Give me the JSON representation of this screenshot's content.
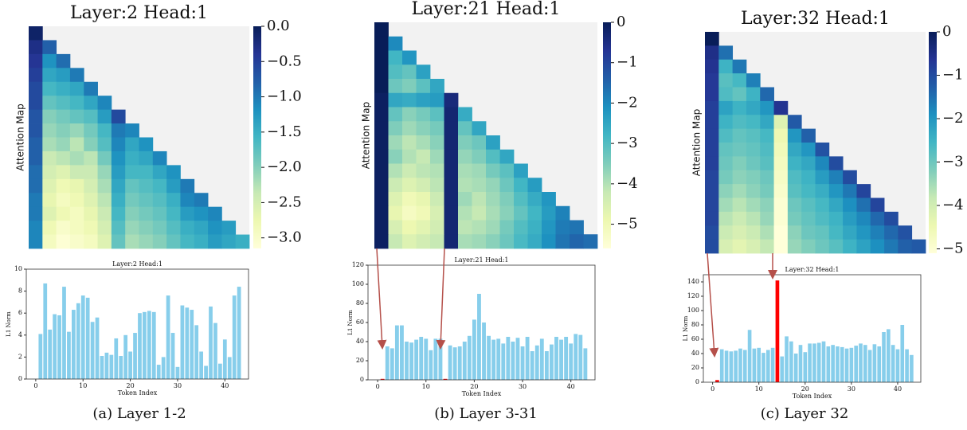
{
  "chart_data": [
    {
      "type": "heatmap",
      "title": "Layer:2 Head:1",
      "ylabel": "Attention Map",
      "colormap": "YlGnBu",
      "zlim": [
        -3.15,
        0
      ],
      "zticks": [
        {
          "value": 0,
          "label": "0.0"
        },
        {
          "value": -0.5,
          "label": "−0.5"
        },
        {
          "value": -1,
          "label": "−1.0"
        },
        {
          "value": -1.5,
          "label": "−1.5"
        },
        {
          "value": -2,
          "label": "−2.0"
        },
        {
          "value": -2.5,
          "label": "−2.5"
        },
        {
          "value": -3,
          "label": "−3.0"
        }
      ],
      "matrix": [
        [
          -0.1
        ],
        [
          -0.3,
          -0.8
        ],
        [
          -0.4,
          -1.2,
          -0.9
        ],
        [
          -0.5,
          -1.4,
          -1.3,
          -1.0
        ],
        [
          -0.6,
          -1.6,
          -1.5,
          -1.4,
          -1.0
        ],
        [
          -0.6,
          -1.8,
          -1.7,
          -1.6,
          -1.4,
          -1.1
        ],
        [
          -0.7,
          -2.0,
          -1.9,
          -1.8,
          -1.7,
          -1.3,
          -0.6
        ],
        [
          -0.7,
          -2.1,
          -2.0,
          -2.1,
          -1.9,
          -1.6,
          -1.0,
          -1.1
        ],
        [
          -0.8,
          -2.2,
          -2.1,
          -2.3,
          -2.0,
          -1.7,
          -1.1,
          -1.4,
          -1.2
        ],
        [
          -0.8,
          -2.4,
          -2.3,
          -2.2,
          -2.3,
          -1.9,
          -1.2,
          -1.5,
          -1.4,
          -1.1
        ],
        [
          -0.9,
          -2.5,
          -2.6,
          -2.4,
          -2.4,
          -2.1,
          -1.3,
          -1.6,
          -1.6,
          -1.4,
          -1.2
        ],
        [
          -0.9,
          -2.6,
          -2.8,
          -2.7,
          -2.5,
          -2.2,
          -1.4,
          -1.8,
          -1.7,
          -1.6,
          -1.3,
          -1.0
        ],
        [
          -1.0,
          -2.7,
          -2.9,
          -2.8,
          -2.6,
          -2.3,
          -1.5,
          -1.9,
          -1.8,
          -1.7,
          -1.5,
          -1.1,
          -1.0
        ],
        [
          -1.0,
          -2.6,
          -2.8,
          -2.9,
          -2.7,
          -2.4,
          -1.6,
          -2.0,
          -1.9,
          -1.8,
          -1.6,
          -1.3,
          -1.2,
          -1.1
        ],
        [
          -1.1,
          -2.8,
          -3.0,
          -2.9,
          -2.8,
          -2.5,
          -1.7,
          -2.1,
          -2.0,
          -1.9,
          -1.7,
          -1.5,
          -1.4,
          -1.2,
          -1.3
        ],
        [
          -1.1,
          -2.9,
          -3.1,
          -3.0,
          -2.9,
          -2.6,
          -1.8,
          -2.2,
          -2.1,
          -2.0,
          -1.8,
          -1.6,
          -1.5,
          -1.3,
          -1.4,
          -1.5
        ]
      ]
    },
    {
      "type": "bar",
      "title": "Layer:2 Head:1",
      "xlabel": "Token Index",
      "ylabel": "L1 Norm",
      "x": [
        1,
        2,
        3,
        4,
        5,
        6,
        7,
        8,
        9,
        10,
        11,
        12,
        13,
        14,
        15,
        16,
        17,
        18,
        19,
        20,
        21,
        22,
        23,
        24,
        25,
        26,
        27,
        28,
        29,
        30,
        31,
        32,
        33,
        34,
        35,
        36,
        37,
        38,
        39,
        40,
        41,
        42,
        43
      ],
      "values": [
        4.1,
        8.7,
        4.5,
        5.9,
        5.8,
        8.4,
        4.3,
        6.3,
        6.9,
        7.6,
        7.4,
        5.2,
        5.6,
        2.1,
        2.4,
        2.2,
        3.7,
        2.1,
        4.0,
        2.5,
        4.2,
        6.0,
        6.1,
        6.2,
        6.1,
        1.3,
        2.0,
        7.6,
        4.2,
        1.1,
        6.7,
        6.5,
        6.3,
        4.9,
        2.5,
        1.2,
        6.6,
        5.1,
        1.4,
        3.6,
        2.0,
        7.6,
        8.4
      ],
      "color": "#87ceeb",
      "xlim": [
        -2,
        45
      ],
      "xticks": [
        0,
        10,
        20,
        30,
        40
      ],
      "ylim": [
        0,
        10
      ],
      "yticks": [
        0,
        2,
        4,
        6,
        8,
        10
      ]
    },
    {
      "type": "heatmap",
      "title": "Layer:21 Head:1",
      "ylabel": "Attention Map",
      "colormap": "YlGnBu",
      "zlim": [
        -5.6,
        0
      ],
      "zticks": [
        0,
        {
          "value": -1,
          "label": "−1"
        },
        {
          "value": -2,
          "label": "−2"
        },
        {
          "value": -3,
          "label": "−3"
        },
        {
          "value": -4,
          "label": "−4"
        },
        {
          "value": -5,
          "label": "−5"
        }
      ],
      "matrix": [
        [
          0
        ],
        [
          0,
          -2.0
        ],
        [
          0,
          -2.8,
          -2.2
        ],
        [
          0,
          -3.0,
          -3.2,
          -2.4
        ],
        [
          0,
          -3.3,
          -3.5,
          -3.1,
          -2.5
        ],
        [
          -0.1,
          -2.5,
          -2.6,
          -2.4,
          -2.3,
          -0.4
        ],
        [
          -0.1,
          -3.2,
          -3.6,
          -3.4,
          -3.1,
          -0.3,
          -2.6
        ],
        [
          -0.1,
          -3.5,
          -3.8,
          -3.6,
          -3.4,
          -0.3,
          -3.2,
          -2.5
        ],
        [
          -0.1,
          -3.8,
          -4.1,
          -3.9,
          -3.6,
          -0.3,
          -3.5,
          -3.3,
          -2.4
        ],
        [
          -0.1,
          -3.6,
          -4.0,
          -4.2,
          -3.8,
          -0.3,
          -3.7,
          -3.5,
          -3.0,
          -2.5
        ],
        [
          -0.1,
          -4.0,
          -4.3,
          -4.1,
          -4.0,
          -0.3,
          -3.9,
          -3.8,
          -3.4,
          -3.1,
          -2.4
        ],
        [
          -0.1,
          -4.3,
          -4.6,
          -4.4,
          -4.1,
          -0.3,
          -4.0,
          -3.9,
          -3.7,
          -3.3,
          -2.8,
          -2.3
        ],
        [
          -0.1,
          -4.6,
          -5.0,
          -4.8,
          -4.3,
          -0.3,
          -3.8,
          -4.1,
          -3.8,
          -3.5,
          -3.0,
          -2.6,
          -2.2
        ],
        [
          -0.1,
          -4.8,
          -5.2,
          -5.0,
          -4.5,
          -0.3,
          -4.0,
          -4.2,
          -3.9,
          -3.6,
          -3.2,
          -2.8,
          -2.3,
          -1.9
        ],
        [
          -0.1,
          -4.5,
          -4.9,
          -4.7,
          -4.4,
          -0.3,
          -4.1,
          -4.0,
          -3.8,
          -3.4,
          -3.0,
          -2.7,
          -2.2,
          -1.8,
          -1.7
        ],
        [
          -0.1,
          -4.2,
          -4.6,
          -4.4,
          -4.2,
          -0.3,
          -3.9,
          -3.8,
          -3.6,
          -3.3,
          -2.9,
          -2.6,
          -2.1,
          -1.7,
          -1.5,
          -1.6
        ]
      ]
    },
    {
      "type": "bar",
      "title": "Layer:21 Head:1",
      "xlabel": "Token Index",
      "ylabel": "L1 Norm",
      "x": [
        1,
        2,
        3,
        4,
        5,
        6,
        7,
        8,
        9,
        10,
        11,
        12,
        13,
        14,
        15,
        16,
        17,
        18,
        19,
        20,
        21,
        22,
        23,
        24,
        25,
        26,
        27,
        28,
        29,
        30,
        31,
        32,
        33,
        34,
        35,
        36,
        37,
        38,
        39,
        40,
        41,
        42,
        43
      ],
      "values": [
        1,
        35,
        33,
        57,
        57,
        40,
        39,
        42,
        45,
        43,
        31,
        43,
        43,
        1,
        36,
        34,
        35,
        40,
        46,
        63,
        90,
        60,
        46,
        42,
        43,
        38,
        45,
        40,
        44,
        35,
        45,
        30,
        36,
        43,
        30,
        37,
        45,
        42,
        45,
        38,
        48,
        47,
        33
      ],
      "colors": [
        "#ff0000",
        "#87ceeb",
        "#87ceeb",
        "#87ceeb",
        "#87ceeb",
        "#87ceeb",
        "#87ceeb",
        "#87ceeb",
        "#87ceeb",
        "#87ceeb",
        "#87ceeb",
        "#87ceeb",
        "#87ceeb",
        "#ff0000",
        "#87ceeb",
        "#87ceeb",
        "#87ceeb",
        "#87ceeb",
        "#87ceeb",
        "#87ceeb",
        "#87ceeb",
        "#87ceeb",
        "#87ceeb",
        "#87ceeb",
        "#87ceeb",
        "#87ceeb",
        "#87ceeb",
        "#87ceeb",
        "#87ceeb",
        "#87ceeb",
        "#87ceeb",
        "#87ceeb",
        "#87ceeb",
        "#87ceeb",
        "#87ceeb",
        "#87ceeb",
        "#87ceeb",
        "#87ceeb",
        "#87ceeb",
        "#87ceeb",
        "#87ceeb",
        "#87ceeb",
        "#87ceeb"
      ],
      "xlim": [
        -2,
        45
      ],
      "xticks": [
        0,
        10,
        20,
        30,
        40
      ],
      "ylim": [
        0,
        120
      ],
      "yticks": [
        0,
        20,
        40,
        60,
        80,
        100,
        120
      ]
    },
    {
      "type": "heatmap",
      "title": "Layer:32 Head:1",
      "ylabel": "Attention Map",
      "colormap": "YlGnBu",
      "zlim": [
        -5.1,
        0
      ],
      "zticks": [
        0,
        {
          "value": -1,
          "label": "−1"
        },
        {
          "value": -2,
          "label": "−2"
        },
        {
          "value": -3,
          "label": "−3"
        },
        {
          "value": -4,
          "label": "−4"
        },
        {
          "value": -5,
          "label": "−5"
        }
      ],
      "matrix": [
        [
          0
        ],
        [
          -0.5,
          -1.5
        ],
        [
          -0.6,
          -2.5,
          -1.6
        ],
        [
          -0.7,
          -2.8,
          -2.6,
          -1.7
        ],
        [
          -0.7,
          -2.7,
          -2.9,
          -2.5,
          -1.4
        ],
        [
          -0.8,
          -2.2,
          -2.5,
          -2.3,
          -2.0,
          -0.6
        ],
        [
          -0.8,
          -2.5,
          -2.7,
          -2.6,
          -2.3,
          -4.2,
          -1.2
        ],
        [
          -0.8,
          -2.7,
          -2.9,
          -2.8,
          -2.6,
          -4.5,
          -2.0,
          -1.3
        ],
        [
          -0.8,
          -2.9,
          -3.0,
          -2.9,
          -2.7,
          -4.6,
          -2.3,
          -2.0,
          -1.1
        ],
        [
          -0.8,
          -3.0,
          -3.2,
          -3.0,
          -2.8,
          -4.7,
          -2.5,
          -2.3,
          -1.8,
          -1.0
        ],
        [
          -0.9,
          -3.1,
          -3.3,
          -3.2,
          -3.0,
          -4.8,
          -2.7,
          -2.5,
          -2.1,
          -1.7,
          -1.0
        ],
        [
          -0.9,
          -3.3,
          -3.5,
          -3.3,
          -3.1,
          -4.9,
          -2.8,
          -2.6,
          -2.4,
          -2.0,
          -1.6,
          -0.9
        ],
        [
          -0.9,
          -3.5,
          -3.7,
          -3.5,
          -3.3,
          -5.0,
          -3.0,
          -2.8,
          -2.6,
          -2.3,
          -1.9,
          -1.5,
          -0.9
        ],
        [
          -0.9,
          -3.7,
          -3.9,
          -3.7,
          -3.4,
          -5.0,
          -3.1,
          -2.9,
          -2.7,
          -2.5,
          -2.1,
          -1.8,
          -1.4,
          -1.0
        ],
        [
          -1.0,
          -3.9,
          -4.1,
          -3.9,
          -3.6,
          -5.1,
          -3.3,
          -3.0,
          -2.9,
          -2.6,
          -2.3,
          -2.0,
          -1.7,
          -1.4,
          -1.1
        ],
        [
          -1.0,
          -4.1,
          -4.3,
          -4.1,
          -3.8,
          -5.1,
          -3.4,
          -3.2,
          -3.0,
          -2.8,
          -2.5,
          -2.2,
          -1.9,
          -1.6,
          -1.3,
          -1.2
        ]
      ]
    },
    {
      "type": "bar",
      "title": "Layer:32 Head:1",
      "xlabel": "Token Index",
      "ylabel": "L1 Norm",
      "x": [
        1,
        2,
        3,
        4,
        5,
        6,
        7,
        8,
        9,
        10,
        11,
        12,
        13,
        14,
        15,
        16,
        17,
        18,
        19,
        20,
        21,
        22,
        23,
        24,
        25,
        26,
        27,
        28,
        29,
        30,
        31,
        32,
        33,
        34,
        35,
        36,
        37,
        38,
        39,
        40,
        41,
        42,
        43
      ],
      "values": [
        3,
        46,
        44,
        43,
        44,
        47,
        45,
        73,
        47,
        48,
        41,
        45,
        48,
        142,
        36,
        64,
        57,
        40,
        52,
        42,
        54,
        54,
        55,
        57,
        50,
        52,
        50,
        49,
        47,
        48,
        51,
        54,
        52,
        45,
        53,
        50,
        70,
        74,
        52,
        46,
        80,
        46,
        38
      ],
      "colors": [
        "#ff0000",
        "#87ceeb",
        "#87ceeb",
        "#87ceeb",
        "#87ceeb",
        "#87ceeb",
        "#87ceeb",
        "#87ceeb",
        "#87ceeb",
        "#87ceeb",
        "#87ceeb",
        "#87ceeb",
        "#87ceeb",
        "#ff0000",
        "#87ceeb",
        "#87ceeb",
        "#87ceeb",
        "#87ceeb",
        "#87ceeb",
        "#87ceeb",
        "#87ceeb",
        "#87ceeb",
        "#87ceeb",
        "#87ceeb",
        "#87ceeb",
        "#87ceeb",
        "#87ceeb",
        "#87ceeb",
        "#87ceeb",
        "#87ceeb",
        "#87ceeb",
        "#87ceeb",
        "#87ceeb",
        "#87ceeb",
        "#87ceeb",
        "#87ceeb",
        "#87ceeb",
        "#87ceeb",
        "#87ceeb",
        "#87ceeb",
        "#87ceeb",
        "#87ceeb",
        "#87ceeb"
      ],
      "xlim": [
        -2,
        45
      ],
      "xticks": [
        0,
        10,
        20,
        30,
        40
      ],
      "ylim": [
        0,
        150
      ],
      "yticks": [
        0,
        20,
        40,
        60,
        80,
        100,
        120,
        140
      ]
    }
  ],
  "captions": [
    "(a) Layer 1-2",
    "(b) Layer 3-31",
    "(c) Layer 32"
  ]
}
